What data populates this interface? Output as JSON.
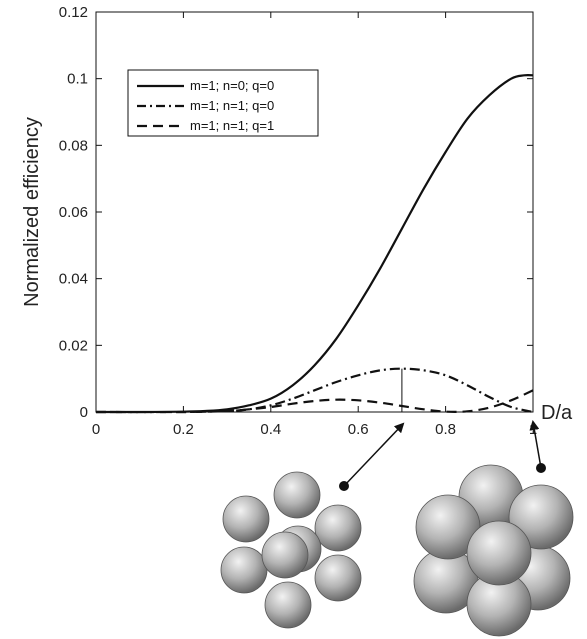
{
  "chart_data": {
    "type": "line",
    "title": "",
    "xlabel": "D/a",
    "ylabel": "Normalized efficiency",
    "xlim": [
      0,
      1
    ],
    "ylim": [
      0,
      0.12
    ],
    "xticks": [
      "0",
      "0.2",
      "0.4",
      "0.6",
      "0.8",
      "1"
    ],
    "yticks": [
      "0",
      "0.02",
      "0.04",
      "0.06",
      "0.08",
      "0.1",
      "0.12"
    ],
    "grid": false,
    "legend_position": "top-left",
    "series": [
      {
        "name": "m=1; n=0; q=0",
        "style": "solid",
        "x": [
          0,
          0.1,
          0.2,
          0.25,
          0.3,
          0.35,
          0.4,
          0.45,
          0.5,
          0.55,
          0.6,
          0.65,
          0.7,
          0.75,
          0.8,
          0.85,
          0.9,
          0.95,
          0.98,
          1.0
        ],
        "y": [
          0,
          0,
          0.0001,
          0.0003,
          0.0008,
          0.002,
          0.004,
          0.008,
          0.014,
          0.022,
          0.032,
          0.043,
          0.055,
          0.067,
          0.078,
          0.088,
          0.095,
          0.1,
          0.101,
          0.101
        ]
      },
      {
        "name": "m=1; n=1; q=0",
        "style": "dash-dot",
        "x": [
          0,
          0.2,
          0.3,
          0.35,
          0.4,
          0.45,
          0.5,
          0.55,
          0.6,
          0.65,
          0.7,
          0.75,
          0.8,
          0.85,
          0.9,
          0.95,
          1.0
        ],
        "y": [
          0,
          0,
          0.0003,
          0.0008,
          0.002,
          0.004,
          0.0065,
          0.009,
          0.011,
          0.0125,
          0.013,
          0.0125,
          0.011,
          0.008,
          0.0045,
          0.0015,
          0
        ]
      },
      {
        "name": "m=1; n=1; q=1",
        "style": "dashed",
        "x": [
          0,
          0.2,
          0.3,
          0.35,
          0.4,
          0.45,
          0.5,
          0.55,
          0.6,
          0.65,
          0.7,
          0.75,
          0.8,
          0.85,
          0.9,
          0.95,
          1.0
        ],
        "y": [
          0,
          0,
          0.0003,
          0.0008,
          0.0015,
          0.0025,
          0.0033,
          0.0037,
          0.0035,
          0.0028,
          0.0018,
          0.0008,
          0.0001,
          0.0002,
          0.0013,
          0.0035,
          0.0065
        ]
      }
    ],
    "annotations": [
      {
        "type": "cluster",
        "shape": "loose",
        "spheres": 9,
        "points_to_x": 0.71
      },
      {
        "type": "cluster",
        "shape": "compact",
        "spheres": 9,
        "points_to_x": 1.0
      }
    ]
  }
}
